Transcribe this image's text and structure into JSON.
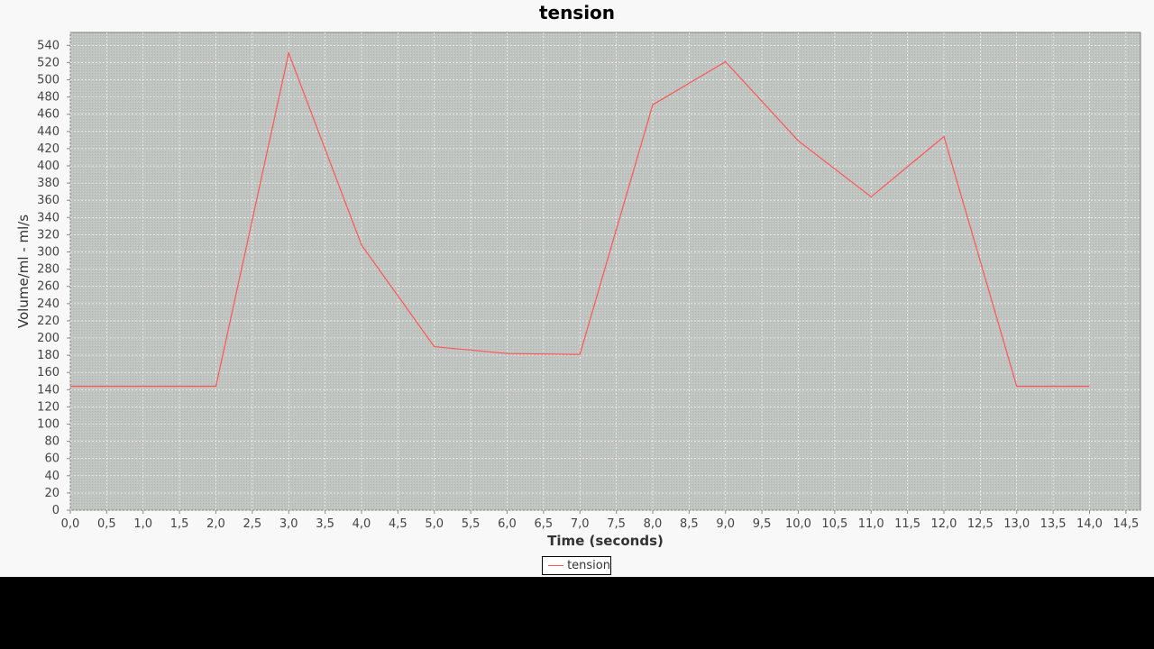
{
  "chart_data": {
    "type": "line",
    "title": "tension",
    "xlabel": "Time (seconds)",
    "ylabel": "Volume/ml - ml/s",
    "xlim": [
      0,
      14.7
    ],
    "ylim": [
      0,
      555
    ],
    "x_ticks": [
      "0,0",
      "0,5",
      "1,0",
      "1,5",
      "2,0",
      "2,5",
      "3,0",
      "3,5",
      "4,0",
      "4,5",
      "5,0",
      "5,5",
      "6,0",
      "6,5",
      "7,0",
      "7,5",
      "8,0",
      "8,5",
      "9,0",
      "9,5",
      "10,0",
      "10,5",
      "11,0",
      "11,5",
      "12,0",
      "12,5",
      "13,0",
      "13,5",
      "14,0",
      "14,5"
    ],
    "y_ticks": [
      0,
      20,
      40,
      60,
      80,
      100,
      120,
      140,
      160,
      180,
      200,
      220,
      240,
      260,
      280,
      300,
      320,
      340,
      360,
      380,
      400,
      420,
      440,
      460,
      480,
      500,
      520,
      540
    ],
    "grid": true,
    "legend": "bottom",
    "plot_background": "#c0c4c0",
    "series": [
      {
        "name": "tension",
        "color": "#ff5555",
        "x": [
          0,
          1,
          2,
          3,
          4,
          5,
          6,
          7,
          8,
          9,
          10,
          11,
          12,
          13,
          14
        ],
        "y": [
          144,
          144,
          144,
          531,
          308,
          190,
          182,
          181,
          471,
          521,
          429,
          364,
          434,
          144,
          144
        ]
      }
    ]
  }
}
